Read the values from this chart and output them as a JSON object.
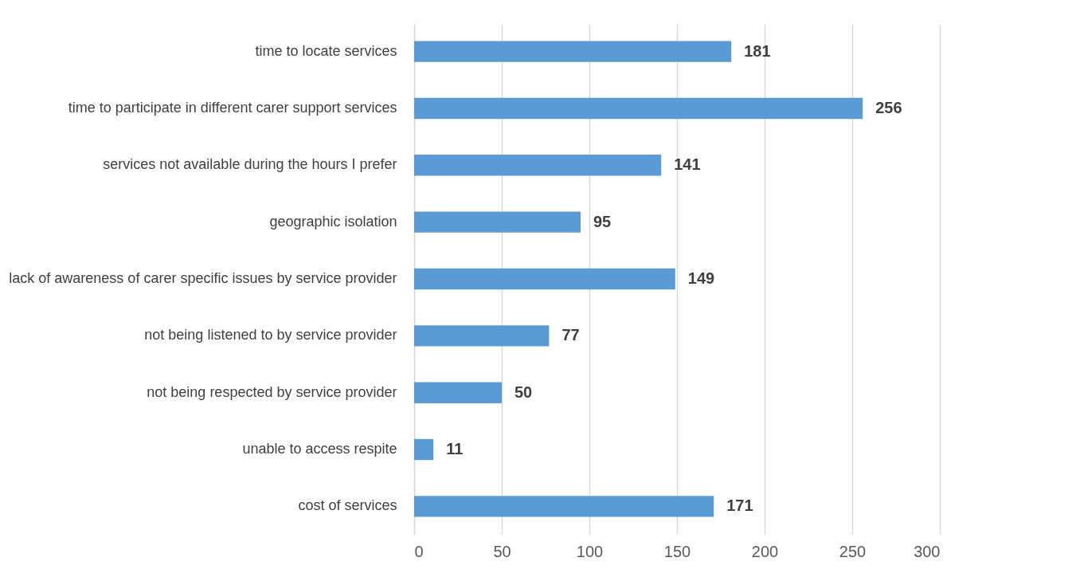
{
  "chart_data": {
    "type": "bar",
    "orientation": "horizontal",
    "categories": [
      "time to locate services",
      "time to participate in different carer support services",
      "services not available during the hours I prefer",
      "geographic isolation",
      "lack of awareness of carer specific issues by service provider",
      "not being listened to by service provider",
      "not being respected by service provider",
      "unable to access respite",
      "cost of services"
    ],
    "values": [
      181,
      256,
      141,
      95,
      149,
      77,
      50,
      11,
      171
    ],
    "color": "#5b9bd5",
    "xlim": [
      0,
      300
    ],
    "xticks": [
      0,
      50,
      100,
      150,
      200,
      250,
      300
    ],
    "grid": "x",
    "data_labels": true
  }
}
